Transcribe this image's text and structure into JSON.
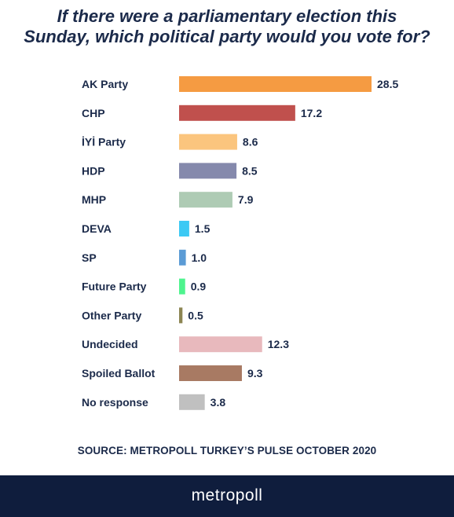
{
  "chart_data": {
    "type": "bar",
    "orientation": "horizontal",
    "title": "If there were a parliamentary election this Sunday, which political party would you vote for?",
    "title_lines": [
      "If there were a parliamentary election this",
      "Sunday, which political party would you vote for?"
    ],
    "categories": [
      "AK Party",
      "CHP",
      "İYİ Party",
      "HDP",
      "MHP",
      "DEVA",
      "SP",
      "Future Party",
      "Other Party",
      "Undecided",
      "Spoiled Ballot",
      "No response"
    ],
    "values": [
      28.5,
      17.2,
      8.6,
      8.5,
      7.9,
      1.5,
      1.0,
      0.9,
      0.5,
      12.3,
      9.3,
      3.8
    ],
    "value_labels": [
      "28.5",
      "17.2",
      "8.6",
      "8.5",
      "7.9",
      "1.5",
      "1.0",
      "0.9",
      "0.5",
      "12.3",
      "9.3",
      "3.8"
    ],
    "colors": [
      "#f59b42",
      "#c0504d",
      "#fbc57e",
      "#8589ac",
      "#aecbb4",
      "#3cc9f4",
      "#5b9bd5",
      "#4ef48e",
      "#8c8553",
      "#e8b9bd",
      "#a87a63",
      "#c0c0c0"
    ],
    "xlim": [
      0,
      28.5
    ],
    "grid": false,
    "legend": "none"
  },
  "source": "SOURCE: METROPOLL TURKEY’S PULSE OCTOBER 2020",
  "brand": "metropoll"
}
